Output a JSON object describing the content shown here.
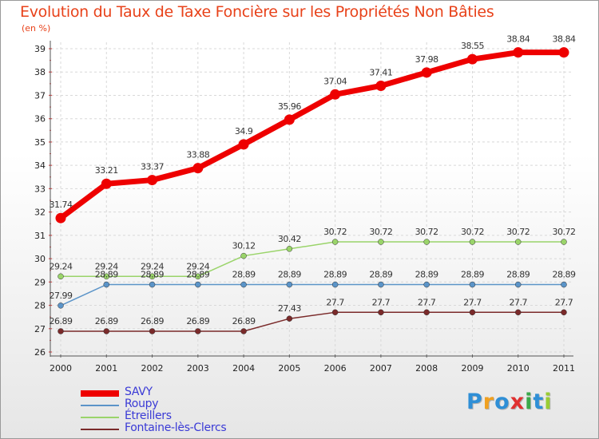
{
  "chart_data": {
    "type": "line",
    "title": "Evolution du Taux de Taxe Foncière sur les Propriétés Non Bâties",
    "subtitle": "(en %)",
    "xlabel": "",
    "ylabel": "",
    "categories": [
      "2000",
      "2001",
      "2002",
      "2003",
      "2004",
      "2005",
      "2006",
      "2007",
      "2008",
      "2009",
      "2010",
      "2011"
    ],
    "ylim": [
      26,
      39
    ],
    "yticks": [
      26,
      27,
      28,
      29,
      30,
      31,
      32,
      33,
      34,
      35,
      36,
      37,
      38,
      39
    ],
    "grid": true,
    "legend_position": "bottom-left",
    "series": [
      {
        "name": "SAVY",
        "color": "#ee0000",
        "values": [
          31.74,
          33.21,
          33.37,
          33.88,
          34.9,
          35.96,
          37.04,
          37.41,
          37.98,
          38.55,
          38.84,
          38.84
        ],
        "labels": [
          "31.74",
          "33.21",
          "33.37",
          "33.88",
          "34.9",
          "35.96",
          "37.04",
          "37.41",
          "37.98",
          "38.55",
          "38.84",
          "38.84"
        ]
      },
      {
        "name": "Roupy",
        "color": "#5b94c8",
        "values": [
          27.99,
          28.89,
          28.89,
          28.89,
          28.89,
          28.89,
          28.89,
          28.89,
          28.89,
          28.89,
          28.89,
          28.89
        ],
        "labels": [
          "27.99",
          "28.89",
          "28.89",
          "28.89",
          "28.89",
          "28.89",
          "28.89",
          "28.89",
          "28.89",
          "28.89",
          "28.89",
          "28.89"
        ]
      },
      {
        "name": "Étreillers",
        "color": "#9ad46a",
        "values": [
          29.24,
          29.24,
          29.24,
          29.24,
          30.12,
          30.42,
          30.72,
          30.72,
          30.72,
          30.72,
          30.72,
          30.72
        ],
        "labels": [
          "29.24",
          "29.24",
          "29.24",
          "29.24",
          "30.12",
          "30.42",
          "30.72",
          "30.72",
          "30.72",
          "30.72",
          "30.72",
          "30.72"
        ]
      },
      {
        "name": "Fontaine-lès-Clercs",
        "color": "#7a2a2a",
        "values": [
          26.89,
          26.89,
          26.89,
          26.89,
          26.89,
          27.43,
          27.7,
          27.7,
          27.7,
          27.7,
          27.7,
          27.7
        ],
        "labels": [
          "26.89",
          "26.89",
          "26.89",
          "26.89",
          "26.89",
          "27.43",
          "27.7",
          "27.7",
          "27.7",
          "27.7",
          "27.7",
          "27.7"
        ]
      }
    ]
  },
  "logo": {
    "text": "Proxiti",
    "letters": [
      "P",
      "r",
      "o",
      "x",
      "i",
      "t",
      "i"
    ],
    "colors": [
      "#2f8fd6",
      "#f0a020",
      "#2f8fd6",
      "#e03030",
      "#3aa84a",
      "#2f8fd6",
      "#9acd32"
    ]
  }
}
